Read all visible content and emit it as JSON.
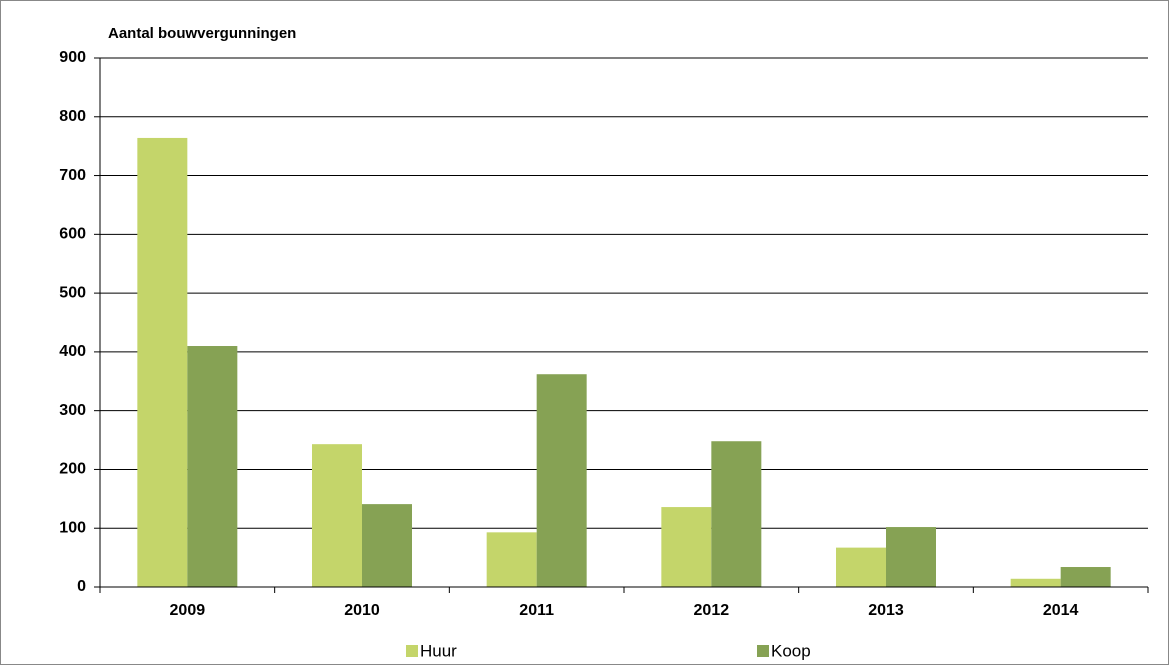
{
  "chart_data": {
    "type": "bar",
    "title": "Aantal bouwvergunningen",
    "categories": [
      "2009",
      "2010",
      "2011",
      "2012",
      "2013",
      "2014"
    ],
    "series": [
      {
        "name": "Huur",
        "color": "#c4d56a",
        "values": [
          764,
          243,
          93,
          136,
          67,
          14
        ]
      },
      {
        "name": "Koop",
        "color": "#86a254",
        "values": [
          410,
          141,
          362,
          248,
          102,
          34
        ]
      }
    ],
    "ylim": [
      0,
      900
    ],
    "yticks": [
      0,
      100,
      200,
      300,
      400,
      500,
      600,
      700,
      800,
      900
    ],
    "grid": true,
    "legend": "bottom"
  }
}
